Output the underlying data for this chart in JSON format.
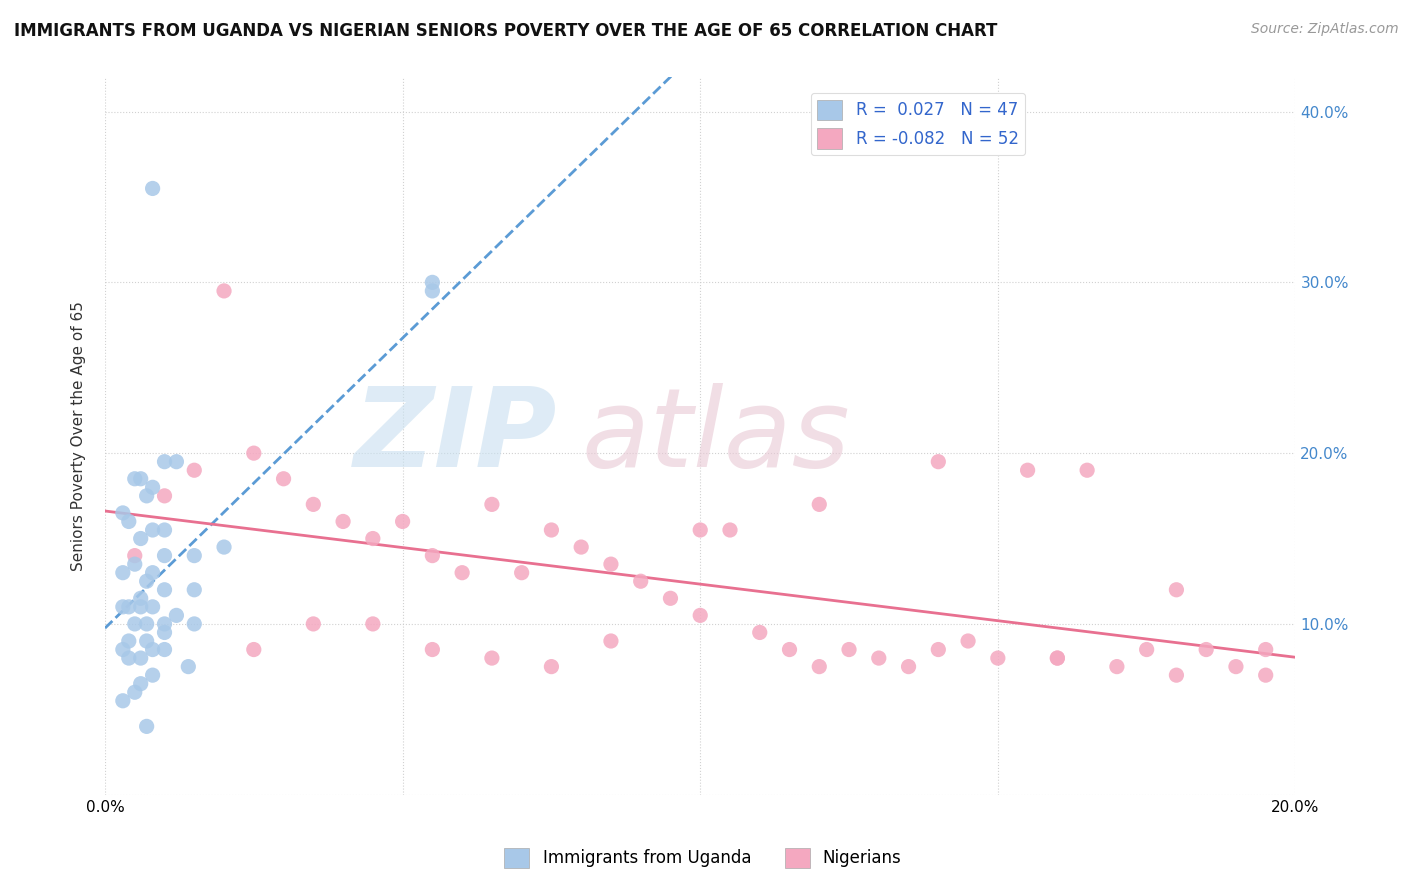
{
  "title": "IMMIGRANTS FROM UGANDA VS NIGERIAN SENIORS POVERTY OVER THE AGE OF 65 CORRELATION CHART",
  "source_text": "Source: ZipAtlas.com",
  "ylabel": "Seniors Poverty Over the Age of 65",
  "xlim": [
    0.0,
    0.2
  ],
  "ylim": [
    0.0,
    0.42
  ],
  "xticks": [
    0.0,
    0.05,
    0.1,
    0.15,
    0.2
  ],
  "xtick_labels": [
    "0.0%",
    "",
    "",
    "",
    "20.0%"
  ],
  "ytick_labels_right": [
    "",
    "10.0%",
    "20.0%",
    "30.0%",
    "40.0%"
  ],
  "yticks": [
    0.0,
    0.1,
    0.2,
    0.3,
    0.4
  ],
  "r_uganda": 0.027,
  "n_uganda": 47,
  "r_nigerian": -0.082,
  "n_nigerian": 52,
  "uganda_color": "#a8c8e8",
  "nigerian_color": "#f4a8c0",
  "uganda_line_color": "#5b9bd5",
  "nigerian_line_color": "#e87090",
  "background_color": "#ffffff",
  "grid_color": "#cccccc",
  "uganda_scatter_x": [
    0.008,
    0.012,
    0.01,
    0.005,
    0.006,
    0.008,
    0.007,
    0.003,
    0.004,
    0.008,
    0.01,
    0.006,
    0.02,
    0.015,
    0.01,
    0.005,
    0.008,
    0.003,
    0.007,
    0.01,
    0.015,
    0.006,
    0.004,
    0.008,
    0.003,
    0.006,
    0.012,
    0.01,
    0.005,
    0.007,
    0.015,
    0.01,
    0.007,
    0.004,
    0.003,
    0.008,
    0.01,
    0.006,
    0.004,
    0.014,
    0.008,
    0.006,
    0.005,
    0.003,
    0.055,
    0.055,
    0.007
  ],
  "uganda_scatter_y": [
    0.355,
    0.195,
    0.195,
    0.185,
    0.185,
    0.18,
    0.175,
    0.165,
    0.16,
    0.155,
    0.155,
    0.15,
    0.145,
    0.14,
    0.14,
    0.135,
    0.13,
    0.13,
    0.125,
    0.12,
    0.12,
    0.115,
    0.11,
    0.11,
    0.11,
    0.11,
    0.105,
    0.1,
    0.1,
    0.1,
    0.1,
    0.095,
    0.09,
    0.09,
    0.085,
    0.085,
    0.085,
    0.08,
    0.08,
    0.075,
    0.07,
    0.065,
    0.06,
    0.055,
    0.3,
    0.295,
    0.04
  ],
  "nigerian_scatter_x": [
    0.005,
    0.01,
    0.015,
    0.02,
    0.025,
    0.03,
    0.035,
    0.04,
    0.045,
    0.05,
    0.055,
    0.06,
    0.065,
    0.07,
    0.075,
    0.08,
    0.085,
    0.09,
    0.095,
    0.1,
    0.105,
    0.11,
    0.115,
    0.12,
    0.125,
    0.13,
    0.135,
    0.14,
    0.145,
    0.15,
    0.155,
    0.16,
    0.165,
    0.17,
    0.175,
    0.18,
    0.185,
    0.19,
    0.195,
    0.025,
    0.035,
    0.045,
    0.055,
    0.065,
    0.075,
    0.085,
    0.1,
    0.12,
    0.14,
    0.16,
    0.18,
    0.195
  ],
  "nigerian_scatter_y": [
    0.14,
    0.175,
    0.19,
    0.295,
    0.2,
    0.185,
    0.17,
    0.16,
    0.15,
    0.16,
    0.14,
    0.13,
    0.17,
    0.13,
    0.155,
    0.145,
    0.135,
    0.125,
    0.115,
    0.105,
    0.155,
    0.095,
    0.085,
    0.17,
    0.085,
    0.08,
    0.075,
    0.195,
    0.09,
    0.08,
    0.19,
    0.08,
    0.19,
    0.075,
    0.085,
    0.12,
    0.085,
    0.075,
    0.085,
    0.085,
    0.1,
    0.1,
    0.085,
    0.08,
    0.075,
    0.09,
    0.155,
    0.075,
    0.085,
    0.08,
    0.07,
    0.07
  ]
}
